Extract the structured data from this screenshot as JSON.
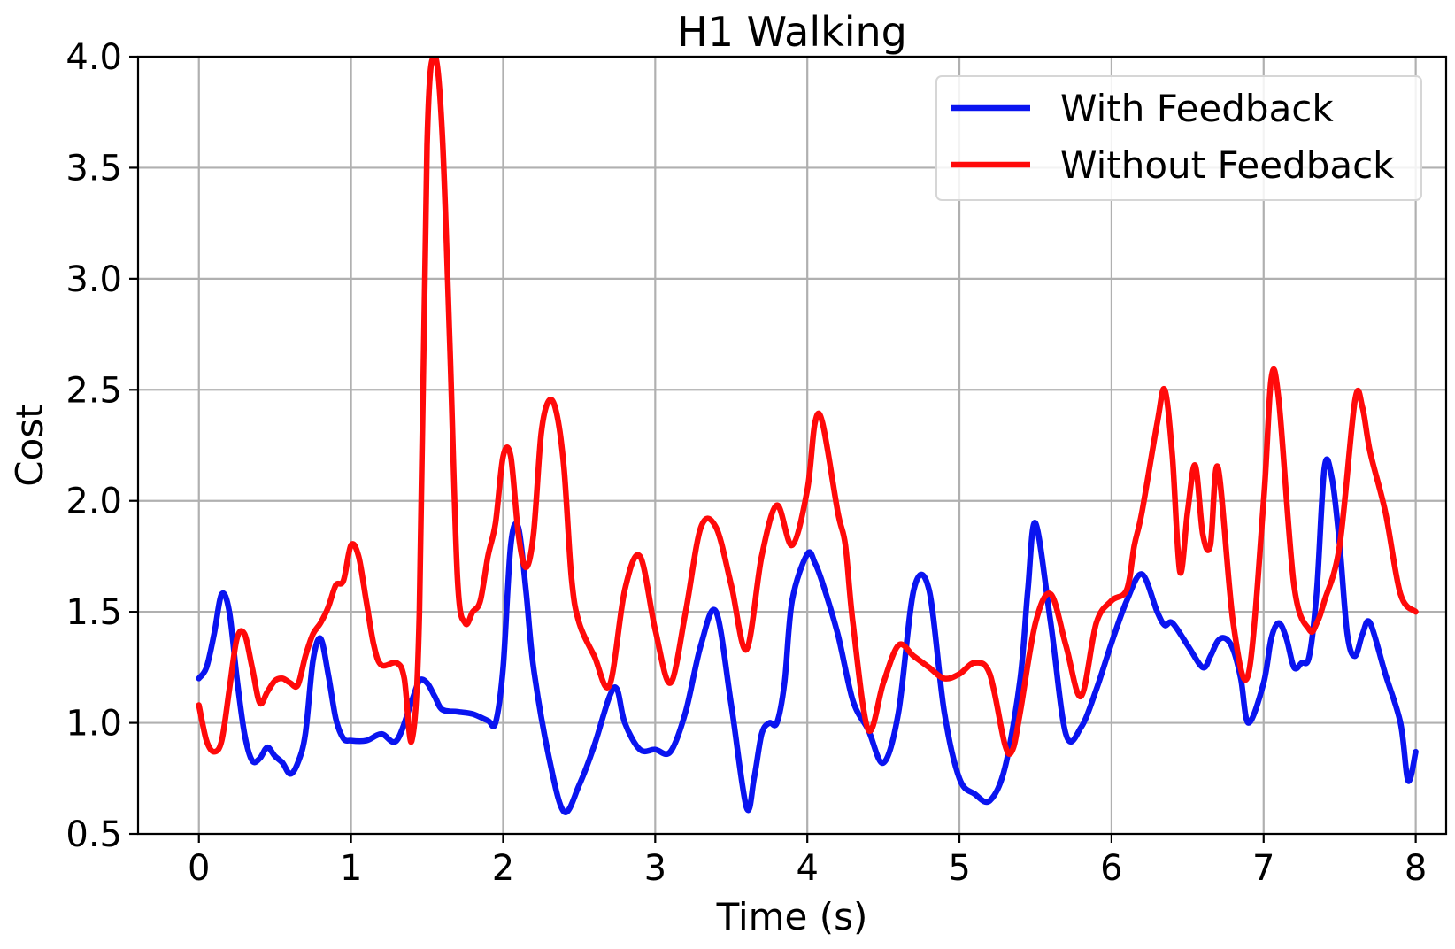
{
  "chart_data": {
    "type": "line",
    "title": "H1 Walking",
    "xlabel": "Time (s)",
    "ylabel": "Cost",
    "xlim": [
      -0.4,
      8.2
    ],
    "ylim": [
      0.5,
      4.0
    ],
    "xticks": [
      0,
      1,
      2,
      3,
      4,
      5,
      6,
      7,
      8
    ],
    "xtick_labels": [
      "0",
      "1",
      "2",
      "3",
      "4",
      "5",
      "6",
      "7",
      "8"
    ],
    "yticks": [
      0.5,
      1.0,
      1.5,
      2.0,
      2.5,
      3.0,
      3.5,
      4.0
    ],
    "ytick_labels": [
      "0.5",
      "1.0",
      "1.5",
      "2.0",
      "2.5",
      "3.0",
      "3.5",
      "4.0"
    ],
    "grid": true,
    "legend_position": "top-right",
    "series": [
      {
        "name": "With Feedback",
        "color": "#0a14f0",
        "x": [
          0,
          0.05,
          0.1,
          0.15,
          0.2,
          0.25,
          0.3,
          0.35,
          0.4,
          0.45,
          0.5,
          0.55,
          0.6,
          0.65,
          0.7,
          0.75,
          0.8,
          0.85,
          0.9,
          0.95,
          1.0,
          1.1,
          1.2,
          1.3,
          1.4,
          1.45,
          1.5,
          1.55,
          1.6,
          1.7,
          1.8,
          1.9,
          1.95,
          2.0,
          2.05,
          2.1,
          2.15,
          2.2,
          2.3,
          2.4,
          2.5,
          2.6,
          2.7,
          2.75,
          2.8,
          2.9,
          3.0,
          3.1,
          3.2,
          3.3,
          3.4,
          3.5,
          3.6,
          3.65,
          3.7,
          3.75,
          3.8,
          3.85,
          3.9,
          4.0,
          4.05,
          4.1,
          4.2,
          4.3,
          4.4,
          4.5,
          4.6,
          4.7,
          4.8,
          4.9,
          5.0,
          5.1,
          5.2,
          5.3,
          5.4,
          5.45,
          5.5,
          5.6,
          5.7,
          5.8,
          5.9,
          6.0,
          6.1,
          6.2,
          6.3,
          6.35,
          6.4,
          6.5,
          6.6,
          6.65,
          6.7,
          6.75,
          6.8,
          6.85,
          6.9,
          7.0,
          7.05,
          7.1,
          7.15,
          7.2,
          7.25,
          7.3,
          7.35,
          7.4,
          7.45,
          7.5,
          7.55,
          7.6,
          7.65,
          7.7,
          7.8,
          7.9,
          7.95,
          8.0
        ],
        "values": [
          1.2,
          1.25,
          1.4,
          1.58,
          1.5,
          1.2,
          0.95,
          0.83,
          0.84,
          0.89,
          0.85,
          0.82,
          0.77,
          0.82,
          0.95,
          1.28,
          1.38,
          1.22,
          1.02,
          0.93,
          0.92,
          0.92,
          0.95,
          0.92,
          1.1,
          1.19,
          1.18,
          1.12,
          1.06,
          1.05,
          1.04,
          1.01,
          1.0,
          1.25,
          1.8,
          1.88,
          1.6,
          1.25,
          0.85,
          0.6,
          0.72,
          0.9,
          1.12,
          1.15,
          1.0,
          0.88,
          0.88,
          0.87,
          1.05,
          1.35,
          1.5,
          1.08,
          0.62,
          0.75,
          0.95,
          1.0,
          1.0,
          1.18,
          1.55,
          1.76,
          1.72,
          1.63,
          1.4,
          1.1,
          0.97,
          0.82,
          1.05,
          1.6,
          1.6,
          1.05,
          0.75,
          0.68,
          0.65,
          0.8,
          1.2,
          1.6,
          1.9,
          1.45,
          0.95,
          0.98,
          1.15,
          1.36,
          1.55,
          1.67,
          1.5,
          1.44,
          1.45,
          1.35,
          1.25,
          1.3,
          1.37,
          1.38,
          1.33,
          1.2,
          1.0,
          1.18,
          1.38,
          1.45,
          1.38,
          1.25,
          1.27,
          1.3,
          1.6,
          2.15,
          2.1,
          1.8,
          1.4,
          1.3,
          1.4,
          1.45,
          1.22,
          1.0,
          0.74,
          0.87
        ]
      },
      {
        "name": "Without Feedback",
        "color": "#ff0a0a",
        "x": [
          0,
          0.05,
          0.1,
          0.15,
          0.2,
          0.25,
          0.3,
          0.35,
          0.4,
          0.45,
          0.5,
          0.55,
          0.6,
          0.65,
          0.7,
          0.75,
          0.8,
          0.85,
          0.9,
          0.95,
          1.0,
          1.05,
          1.1,
          1.15,
          1.2,
          1.3,
          1.35,
          1.4,
          1.45,
          1.5,
          1.55,
          1.6,
          1.65,
          1.7,
          1.75,
          1.8,
          1.85,
          1.9,
          1.95,
          2.0,
          2.05,
          2.1,
          2.15,
          2.2,
          2.25,
          2.3,
          2.35,
          2.4,
          2.45,
          2.5,
          2.6,
          2.7,
          2.8,
          2.9,
          3.0,
          3.1,
          3.2,
          3.3,
          3.4,
          3.5,
          3.6,
          3.7,
          3.8,
          3.9,
          4.0,
          4.05,
          4.1,
          4.2,
          4.25,
          4.3,
          4.4,
          4.5,
          4.6,
          4.7,
          4.8,
          4.9,
          5.0,
          5.1,
          5.2,
          5.3,
          5.35,
          5.4,
          5.5,
          5.6,
          5.7,
          5.8,
          5.9,
          6.0,
          6.1,
          6.15,
          6.2,
          6.3,
          6.35,
          6.4,
          6.45,
          6.5,
          6.55,
          6.6,
          6.65,
          6.7,
          6.8,
          6.9,
          7.0,
          7.05,
          7.1,
          7.2,
          7.3,
          7.35,
          7.4,
          7.5,
          7.6,
          7.65,
          7.7,
          7.8,
          7.9,
          8.0
        ],
        "values": [
          1.08,
          0.92,
          0.87,
          0.92,
          1.15,
          1.38,
          1.4,
          1.25,
          1.09,
          1.14,
          1.19,
          1.2,
          1.18,
          1.17,
          1.3,
          1.4,
          1.45,
          1.52,
          1.62,
          1.64,
          1.8,
          1.75,
          1.55,
          1.35,
          1.26,
          1.27,
          1.2,
          0.92,
          1.5,
          3.6,
          4.0,
          3.65,
          2.7,
          1.65,
          1.45,
          1.5,
          1.55,
          1.75,
          1.9,
          2.2,
          2.2,
          1.85,
          1.7,
          1.85,
          2.3,
          2.45,
          2.4,
          2.15,
          1.65,
          1.45,
          1.3,
          1.17,
          1.6,
          1.75,
          1.42,
          1.18,
          1.5,
          1.88,
          1.88,
          1.62,
          1.33,
          1.75,
          1.98,
          1.8,
          2.05,
          2.35,
          2.35,
          1.95,
          1.8,
          1.45,
          0.97,
          1.18,
          1.35,
          1.3,
          1.25,
          1.2,
          1.22,
          1.27,
          1.22,
          0.9,
          0.88,
          1.05,
          1.45,
          1.58,
          1.35,
          1.12,
          1.45,
          1.55,
          1.6,
          1.8,
          1.95,
          2.35,
          2.5,
          2.2,
          1.68,
          1.95,
          2.16,
          1.85,
          1.8,
          2.15,
          1.45,
          1.22,
          2.0,
          2.55,
          2.45,
          1.62,
          1.42,
          1.45,
          1.55,
          1.8,
          2.45,
          2.42,
          2.22,
          1.95,
          1.58,
          1.5
        ]
      }
    ]
  }
}
